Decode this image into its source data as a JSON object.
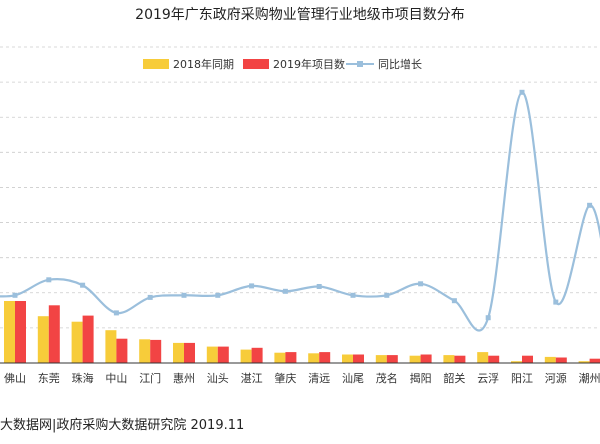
{
  "chart_data": {
    "type": "bar",
    "title": "2019年广东政府采购物业管理行业地级市项目数分布",
    "legend_position": "top-center",
    "grid": true,
    "categories": [
      "佛山",
      "东莞",
      "珠海",
      "中山",
      "江门",
      "惠州",
      "汕头",
      "湛江",
      "肇庆",
      "清远",
      "汕尾",
      "茂名",
      "揭阳",
      "韶关",
      "云浮",
      "阳江",
      "河源",
      "潮州"
    ],
    "series": [
      {
        "name": "2018年同期",
        "kind": "bar",
        "color": "#f7cc3a",
        "values": [
          102,
          77,
          68,
          54,
          39,
          33,
          27,
          22,
          17,
          16,
          14,
          13,
          12,
          13,
          18,
          3,
          10,
          3
        ]
      },
      {
        "name": "2019年项目数",
        "kind": "bar",
        "color": "#f24444",
        "values": [
          102,
          95,
          78,
          40,
          38,
          33,
          27,
          25,
          18,
          18,
          14,
          13,
          14,
          12,
          12,
          12,
          9,
          7
        ]
      },
      {
        "name": "同比增长",
        "kind": "line",
        "color": "#9bbfdc",
        "values": [
          0.0,
          0.23,
          0.15,
          -0.26,
          -0.03,
          0.0,
          0.0,
          0.14,
          0.06,
          0.13,
          0.0,
          0.0,
          0.17,
          -0.08,
          -0.33,
          3.0,
          -0.1,
          1.33
        ]
      }
    ],
    "bar_ylim": [
      0,
      520
    ],
    "line_ylim": [
      -1.0,
      3.67
    ]
  },
  "source_text": "大数据网|政府采购大数据研究院 2019.11"
}
